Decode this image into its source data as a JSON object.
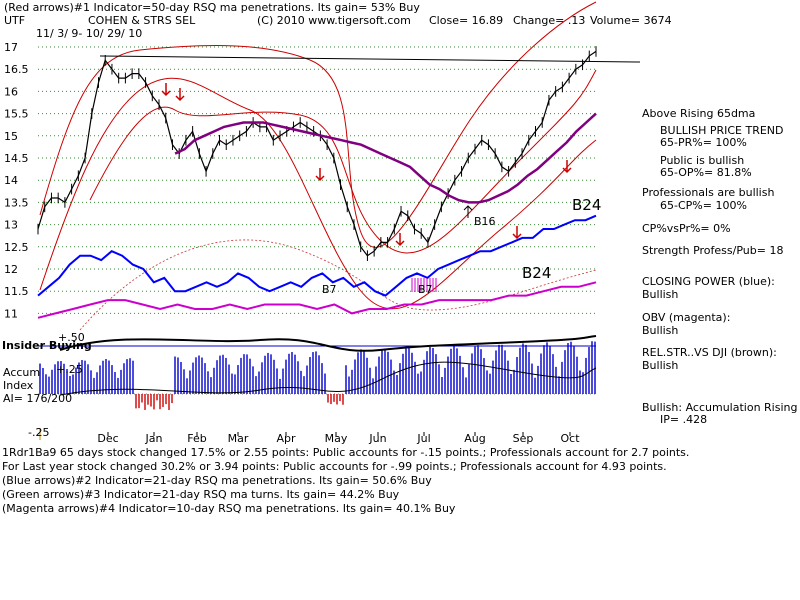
{
  "header": {
    "line1_arrows": "(Red arrows)",
    "line1_text": "#1 Indicator=50-day RSQ ma penetrations. Its gain= 53% Buy",
    "ticker": "UTF",
    "name": "COHEN & STRS SEL",
    "copyright": "(C) 2010 www.tigersoft.com",
    "close": "Close=  16.89",
    "change": "Change= .13",
    "volume": "Volume= 3674",
    "date_range": "11/ 3/ 9- 10/ 29/ 10"
  },
  "panel_labels": {
    "insider": "Insider Buying",
    "accum": "Accum",
    "index": "Index",
    "ai": "AI= 176/200",
    "plus50": "+.50",
    "plus25": "+.25",
    "minus25": "-.25"
  },
  "annotations": {
    "b24_upper": "B24",
    "b24_lower": "B24",
    "b16": "B16",
    "b7_a": "B7",
    "b7_b": "B7"
  },
  "sidebar": [
    {
      "text": "Above Rising 65dma",
      "indent": false
    },
    {
      "text": "BULLISH PRICE TREND",
      "indent": true
    },
    {
      "text": "65-PR%= 100%",
      "indent": true
    },
    {
      "text": "Public is bullish",
      "indent": true
    },
    {
      "text": "65-OP%= 81.8%",
      "indent": true
    },
    {
      "text": "Professionals are bullish",
      "indent": false
    },
    {
      "text": "65-CP%= 100%",
      "indent": true
    },
    {
      "text": "CP%vsPr%=  0%",
      "indent": false
    },
    {
      "text": "Strength Profess/Pub= 18",
      "indent": false
    },
    {
      "text": "CLOSING POWER (blue):",
      "indent": false
    },
    {
      "text": "Bullish",
      "indent": false
    },
    {
      "text": "OBV (magenta):",
      "indent": false
    },
    {
      "text": "Bullish",
      "indent": false
    },
    {
      "text": "REL.STR..VS DJI (brown):",
      "indent": false
    },
    {
      "text": "Bullish",
      "indent": false
    },
    {
      "text": "Bullish: Accumulation Rising",
      "indent": false
    },
    {
      "text": "IP=  .428",
      "indent": true
    }
  ],
  "footer": [
    "1Rdr1Ba9 65 days stock changed  17.5% or  2.55 points:  Public accounts for -.15 points.;  Professionals account for  2.7 points.",
    " For Last year stock changed  30.2% or  3.94 points:  Public accounts for -.99 points.;  Professionals account for  4.93 points.",
    "(Blue arrows)#2 Indicator=21-day RSQ ma penetrations. Its gain= 50.6% Buy",
    "(Green arrows)#3 Indicator=21-day RSQ ma turns. Its gain= 44.2% Buy",
    "(Magenta arrows)#4 Indicator=10-day RSQ ma penetrations. Its gain= 40.1% Buy"
  ],
  "chart_data": {
    "type": "line",
    "title": "COHEN & STRS SEL",
    "ticker": "UTF",
    "date_range": "11/3/09 - 10/29/10",
    "x_tick_labels": [
      "Dec",
      "Jan",
      "Feb",
      "Mar",
      "Apr",
      "May",
      "Jun",
      "Jul",
      "Aug",
      "Sep",
      "Oct"
    ],
    "y_tick_labels": [
      "17",
      "16.5",
      "16",
      "15.5",
      "15",
      "14.5",
      "14",
      "13.5",
      "13",
      "12.5",
      "12",
      "11.5",
      "11"
    ],
    "ylim": [
      10.9,
      17.3
    ],
    "grid": "dotted horizontal lines (green)",
    "series": [
      {
        "legend": "price (close)",
        "color": "#000000",
        "values": [
          12.9,
          13.4,
          13.6,
          13.6,
          13.5,
          13.8,
          14.1,
          14.5,
          15.5,
          16.2,
          16.7,
          16.5,
          16.3,
          16.3,
          16.4,
          16.4,
          16.2,
          15.9,
          15.7,
          15.4,
          14.8,
          14.6,
          14.9,
          15.1,
          14.6,
          14.2,
          14.6,
          14.9,
          14.8,
          14.9,
          15.0,
          15.1,
          15.3,
          15.2,
          15.2,
          14.9,
          15.0,
          15.1,
          15.2,
          15.3,
          15.2,
          15.1,
          15.0,
          14.8,
          14.5,
          13.9,
          13.4,
          13.0,
          12.5,
          12.3,
          12.4,
          12.6,
          12.6,
          12.9,
          13.3,
          13.2,
          12.9,
          12.8,
          12.6,
          13.0,
          13.4,
          13.7,
          14.0,
          14.2,
          14.5,
          14.7,
          14.9,
          14.8,
          14.6,
          14.3,
          14.2,
          14.4,
          14.6,
          14.9,
          15.1,
          15.3,
          15.8,
          16.0,
          16.1,
          16.3,
          16.5,
          16.6,
          16.8,
          16.9
        ]
      },
      {
        "legend": "65-dma (purple)",
        "color": "#800080",
        "values": [
          null,
          null,
          null,
          null,
          null,
          null,
          null,
          null,
          null,
          null,
          null,
          null,
          null,
          null,
          14.6,
          14.7,
          14.9,
          15.0,
          15.1,
          15.2,
          15.25,
          15.3,
          15.3,
          15.3,
          15.25,
          15.2,
          15.15,
          15.1,
          15.05,
          15.0,
          14.95,
          14.9,
          14.85,
          14.8,
          14.7,
          14.6,
          14.5,
          14.4,
          14.3,
          14.1,
          13.9,
          13.8,
          13.65,
          13.55,
          13.5,
          13.5,
          13.55,
          13.65,
          13.75,
          13.9,
          14.1,
          14.25,
          14.45,
          14.65,
          14.85,
          15.1,
          15.3,
          15.5
        ]
      },
      {
        "legend": "Closing Power (blue)",
        "color": "#0000ff",
        "values": [
          11.4,
          11.6,
          11.8,
          12.1,
          12.3,
          12.3,
          12.2,
          12.4,
          12.3,
          12.1,
          12.0,
          11.7,
          11.8,
          11.5,
          11.5,
          11.6,
          11.7,
          11.6,
          11.7,
          11.9,
          11.8,
          11.6,
          11.5,
          11.6,
          11.7,
          11.6,
          11.8,
          11.9,
          11.7,
          11.8,
          11.6,
          11.7,
          11.5,
          11.4,
          11.6,
          11.8,
          11.9,
          11.8,
          12.0,
          12.1,
          12.2,
          12.3,
          12.4,
          12.4,
          12.5,
          12.6,
          12.7,
          12.7,
          12.9,
          12.9,
          13.0,
          13.1,
          13.1,
          13.2
        ]
      },
      {
        "legend": "OBV (magenta)",
        "color": "#cc00cc",
        "values": [
          10.9,
          11.0,
          11.1,
          11.2,
          11.3,
          11.3,
          11.2,
          11.1,
          11.2,
          11.1,
          11.1,
          11.2,
          11.1,
          11.2,
          11.2,
          11.2,
          11.1,
          11.2,
          11.0,
          11.1,
          11.1,
          11.2,
          11.2,
          11.3,
          11.3,
          11.3,
          11.3,
          11.4,
          11.4,
          11.5,
          11.6,
          11.6,
          11.7
        ]
      }
    ],
    "accum_index": {
      "label": "Accum Index",
      "ai": "176/200",
      "ylim": [
        -0.25,
        0.5
      ],
      "color_positive": "#0000cc",
      "color_negative": "#cc0000"
    }
  }
}
